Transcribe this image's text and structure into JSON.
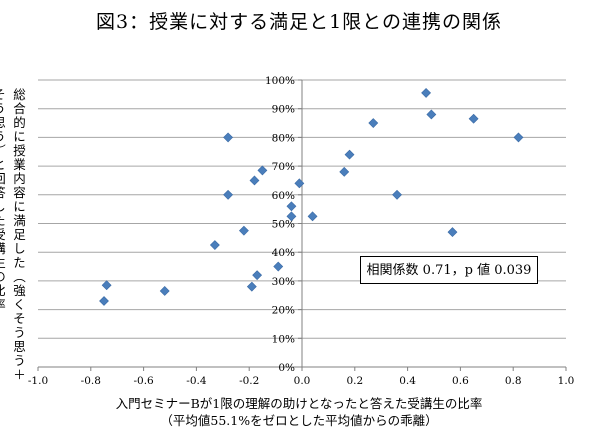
{
  "chart_data": {
    "type": "scatter",
    "title": "図3：授業に対する満足と1限との連携の関係",
    "ylabel": "総合的に授業内容に満足した（強くそう思う＋そう思う）と回答した受講生の比率",
    "xlabel_line1": "入門セミナーBが1限の理解の助けとなったと答えた受講生の比率",
    "xlabel_line2": "（平均値55.1%をゼロとした平均値からの乖離）",
    "annotation": "相関係数 0.71，p 値 0.039",
    "xlim": [
      -1.0,
      1.0
    ],
    "ylim": [
      0,
      100
    ],
    "x_ticks": [
      "-1.0",
      "-0.8",
      "-0.6",
      "-0.4",
      "-0.2",
      "0.0",
      "0.2",
      "0.4",
      "0.6",
      "0.8",
      "1.0"
    ],
    "y_ticks": [
      "0%",
      "10%",
      "20%",
      "30%",
      "40%",
      "50%",
      "60%",
      "70%",
      "80%",
      "90%",
      "100%"
    ],
    "grid": true,
    "marker_color": "#4a7ebb",
    "points": [
      {
        "x": -0.74,
        "y": 28.5
      },
      {
        "x": -0.75,
        "y": 23
      },
      {
        "x": -0.52,
        "y": 26.5
      },
      {
        "x": -0.33,
        "y": 42.5
      },
      {
        "x": -0.28,
        "y": 80
      },
      {
        "x": -0.28,
        "y": 60
      },
      {
        "x": -0.22,
        "y": 47.5
      },
      {
        "x": -0.18,
        "y": 65
      },
      {
        "x": -0.15,
        "y": 68.5
      },
      {
        "x": -0.17,
        "y": 32
      },
      {
        "x": -0.19,
        "y": 28
      },
      {
        "x": -0.09,
        "y": 35
      },
      {
        "x": -0.01,
        "y": 64
      },
      {
        "x": -0.04,
        "y": 56
      },
      {
        "x": -0.04,
        "y": 52.5
      },
      {
        "x": 0.04,
        "y": 52.5
      },
      {
        "x": 0.16,
        "y": 68
      },
      {
        "x": 0.18,
        "y": 74
      },
      {
        "x": 0.27,
        "y": 85
      },
      {
        "x": 0.36,
        "y": 60
      },
      {
        "x": 0.47,
        "y": 95.5
      },
      {
        "x": 0.49,
        "y": 88
      },
      {
        "x": 0.57,
        "y": 47
      },
      {
        "x": 0.65,
        "y": 86.5
      },
      {
        "x": 0.82,
        "y": 80
      }
    ]
  }
}
